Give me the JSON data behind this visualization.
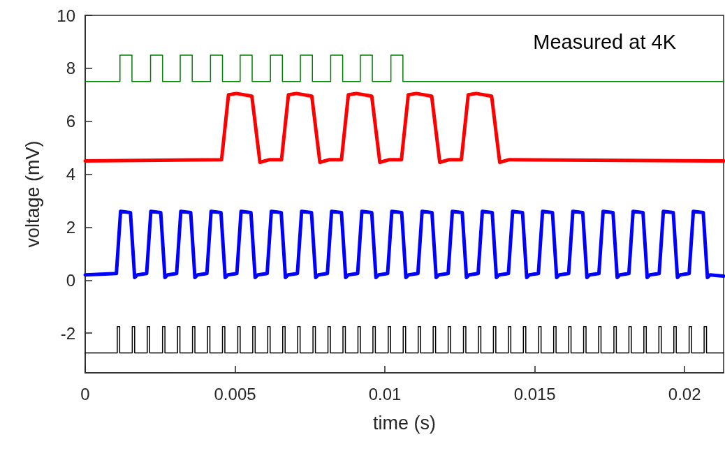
{
  "chart_data": {
    "type": "line",
    "xlabel": "time (s)",
    "ylabel": "voltage (mV)",
    "annotations": [
      "Measured at 4K"
    ],
    "xlim": [
      0,
      0.0213
    ],
    "xticks": [
      0,
      0.005,
      0.01,
      0.015,
      0.02
    ],
    "ylim": [
      -3.5,
      10
    ],
    "yticks": [
      -2,
      0,
      2,
      4,
      6,
      8,
      10
    ],
    "grid": false,
    "marker": "none",
    "line_style": "solid",
    "series": [
      {
        "type": "step",
        "color": "#008000",
        "x": [
          0,
          0.00116,
          0.00156,
          0.00218,
          0.00258,
          0.00317,
          0.00357,
          0.00418,
          0.00458,
          0.00517,
          0.00557,
          0.00618,
          0.00658,
          0.00718,
          0.00758,
          0.00819,
          0.00859,
          0.00918,
          0.00958,
          0.0102,
          0.0106,
          0.0213
        ],
        "values": [
          7.5,
          8.5,
          7.5,
          8.5,
          7.5,
          8.5,
          7.5,
          8.5,
          7.5,
          8.5,
          7.5,
          8.5,
          7.5,
          8.5,
          7.5,
          8.5,
          7.5,
          8.5,
          7.5,
          8.5,
          7.5,
          7.5
        ]
      },
      {
        "type": "line",
        "color": "#ff0000",
        "x": [
          0,
          0.00455,
          0.00478,
          0.00505,
          0.00556,
          0.00583,
          0.00615,
          0.00655,
          0.00678,
          0.00705,
          0.00756,
          0.00783,
          0.00815,
          0.00855,
          0.00878,
          0.00905,
          0.00956,
          0.00983,
          0.01015,
          0.01055,
          0.01078,
          0.01105,
          0.01156,
          0.01183,
          0.01215,
          0.01255,
          0.01278,
          0.01305,
          0.01356,
          0.01383,
          0.01415,
          0.0213
        ],
        "values": [
          4.5,
          4.55,
          7.0,
          7.05,
          6.95,
          4.45,
          4.55,
          4.55,
          7.0,
          7.05,
          6.95,
          4.45,
          4.55,
          4.55,
          7.0,
          7.05,
          6.95,
          4.45,
          4.55,
          4.55,
          7.0,
          7.05,
          6.95,
          4.45,
          4.55,
          4.55,
          7.0,
          7.05,
          6.95,
          4.45,
          4.55,
          4.5
        ]
      },
      {
        "type": "line",
        "color": "#0000ff",
        "x": [
          0,
          0.00104,
          0.00118,
          0.00151,
          0.00165,
          0.00174,
          0.00205,
          0.00219,
          0.00252,
          0.00266,
          0.00275,
          0.00305,
          0.00319,
          0.00352,
          0.00366,
          0.00375,
          0.00406,
          0.0042,
          0.00453,
          0.00467,
          0.00476,
          0.00506,
          0.0052,
          0.00553,
          0.00567,
          0.00576,
          0.00607,
          0.00621,
          0.00654,
          0.00668,
          0.00677,
          0.00708,
          0.00722,
          0.00755,
          0.00769,
          0.00778,
          0.00808,
          0.00822,
          0.00855,
          0.00869,
          0.00878,
          0.00909,
          0.00923,
          0.00956,
          0.0097,
          0.00979,
          0.01009,
          0.01023,
          0.01056,
          0.0107,
          0.01079,
          0.0111,
          0.01124,
          0.01157,
          0.01171,
          0.0118,
          0.01211,
          0.01225,
          0.01258,
          0.01272,
          0.01281,
          0.01311,
          0.01325,
          0.01358,
          0.01372,
          0.01381,
          0.01412,
          0.01426,
          0.01459,
          0.01473,
          0.01482,
          0.01512,
          0.01526,
          0.01559,
          0.01573,
          0.01582,
          0.01613,
          0.01627,
          0.0166,
          0.01674,
          0.01683,
          0.01714,
          0.01728,
          0.01761,
          0.01775,
          0.01784,
          0.01814,
          0.01828,
          0.01861,
          0.01875,
          0.01884,
          0.01915,
          0.01929,
          0.01962,
          0.01976,
          0.01985,
          0.02015,
          0.02029,
          0.02062,
          0.02076,
          0.02085,
          0.0213
        ],
        "values": [
          0.2,
          0.25,
          2.6,
          2.55,
          0.1,
          0.2,
          0.25,
          2.6,
          2.55,
          0.1,
          0.2,
          0.25,
          2.6,
          2.55,
          0.1,
          0.2,
          0.25,
          2.6,
          2.55,
          0.1,
          0.2,
          0.25,
          2.6,
          2.55,
          0.1,
          0.2,
          0.25,
          2.6,
          2.55,
          0.1,
          0.2,
          0.25,
          2.6,
          2.55,
          0.1,
          0.2,
          0.25,
          2.6,
          2.55,
          0.1,
          0.2,
          0.25,
          2.6,
          2.55,
          0.1,
          0.2,
          0.25,
          2.6,
          2.55,
          0.1,
          0.2,
          0.25,
          2.6,
          2.55,
          0.1,
          0.2,
          0.25,
          2.6,
          2.55,
          0.1,
          0.2,
          0.25,
          2.6,
          2.55,
          0.1,
          0.2,
          0.25,
          2.6,
          2.55,
          0.1,
          0.2,
          0.25,
          2.6,
          2.55,
          0.1,
          0.2,
          0.25,
          2.6,
          2.55,
          0.1,
          0.2,
          0.25,
          2.6,
          2.55,
          0.1,
          0.2,
          0.25,
          2.6,
          2.55,
          0.1,
          0.2,
          0.25,
          2.6,
          2.55,
          0.1,
          0.2,
          0.25,
          2.6,
          2.55,
          0.1,
          0.2,
          0.15
        ]
      },
      {
        "type": "step",
        "color": "#000000",
        "x": [
          0,
          0.00107,
          0.00115,
          0.00157,
          0.00165,
          0.00207,
          0.00215,
          0.00258,
          0.00266,
          0.00308,
          0.00316,
          0.00358,
          0.00366,
          0.00408,
          0.00416,
          0.00458,
          0.00466,
          0.00509,
          0.00517,
          0.00559,
          0.00567,
          0.00609,
          0.00617,
          0.00659,
          0.00667,
          0.00709,
          0.00717,
          0.0076,
          0.00768,
          0.0081,
          0.00818,
          0.0086,
          0.00868,
          0.0091,
          0.00918,
          0.0096,
          0.00968,
          0.01011,
          0.01019,
          0.01061,
          0.01069,
          0.01111,
          0.01119,
          0.01161,
          0.01169,
          0.01211,
          0.01219,
          0.01262,
          0.0127,
          0.01312,
          0.0132,
          0.01362,
          0.0137,
          0.01412,
          0.0142,
          0.01462,
          0.0147,
          0.01513,
          0.01521,
          0.01563,
          0.01571,
          0.01613,
          0.01621,
          0.01663,
          0.01671,
          0.01713,
          0.01721,
          0.01764,
          0.01772,
          0.01814,
          0.01822,
          0.01864,
          0.01872,
          0.01914,
          0.01922,
          0.01964,
          0.01972,
          0.02015,
          0.02023,
          0.02065,
          0.02073,
          0.0213
        ],
        "values": [
          -2.75,
          -1.75,
          -2.75,
          -1.75,
          -2.75,
          -1.75,
          -2.75,
          -1.75,
          -2.75,
          -1.75,
          -2.75,
          -1.75,
          -2.75,
          -1.75,
          -2.75,
          -1.75,
          -2.75,
          -1.75,
          -2.75,
          -1.75,
          -2.75,
          -1.75,
          -2.75,
          -1.75,
          -2.75,
          -1.75,
          -2.75,
          -1.75,
          -2.75,
          -1.75,
          -2.75,
          -1.75,
          -2.75,
          -1.75,
          -2.75,
          -1.75,
          -2.75,
          -1.75,
          -2.75,
          -1.75,
          -2.75,
          -1.75,
          -2.75,
          -1.75,
          -2.75,
          -1.75,
          -2.75,
          -1.75,
          -2.75,
          -1.75,
          -2.75,
          -1.75,
          -2.75,
          -1.75,
          -2.75,
          -1.75,
          -2.75,
          -1.75,
          -2.75,
          -1.75,
          -2.75,
          -1.75,
          -2.75,
          -1.75,
          -2.75,
          -1.75,
          -2.75,
          -1.75,
          -2.75,
          -1.75,
          -2.75,
          -1.75,
          -2.75,
          -1.75,
          -2.75,
          -1.75,
          -2.75,
          -1.75,
          -2.75,
          -1.75,
          -2.75,
          -2.75
        ]
      }
    ]
  }
}
